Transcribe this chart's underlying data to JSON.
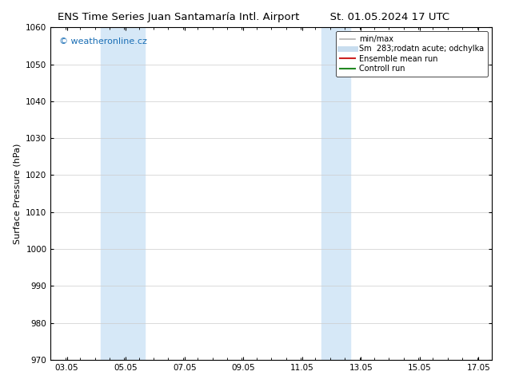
{
  "title_left": "ENS Time Series Juan Santamaría Intl. Airport",
  "title_right": "St. 01.05.2024 17 UTC",
  "ylabel": "Surface Pressure (hPa)",
  "ylim": [
    970,
    1060
  ],
  "yticks": [
    970,
    980,
    990,
    1000,
    1010,
    1020,
    1030,
    1040,
    1050,
    1060
  ],
  "xlim_start": 2.5,
  "xlim_end": 17.5,
  "xtick_positions": [
    3.05,
    5.05,
    7.05,
    9.05,
    11.05,
    13.05,
    15.05,
    17.05
  ],
  "xtick_labels": [
    "03.05",
    "05.05",
    "07.05",
    "09.05",
    "11.05",
    "13.05",
    "15.05",
    "17.05"
  ],
  "shaded_regions": [
    {
      "x_start": 4.2,
      "x_end": 5.7
    },
    {
      "x_start": 11.7,
      "x_end": 12.7
    }
  ],
  "shade_color": "#d6e8f7",
  "watermark_text": "© weatheronline.cz",
  "watermark_color": "#1a6eb5",
  "legend_entries": [
    {
      "label": "min/max",
      "color": "#b0b0b0",
      "linewidth": 1.2,
      "linestyle": "-"
    },
    {
      "label": "Sm  283;rodatn acute; odchylka",
      "color": "#c8ddef",
      "linewidth": 5,
      "linestyle": "-"
    },
    {
      "label": "Ensemble mean run",
      "color": "#cc2222",
      "linewidth": 1.5,
      "linestyle": "-"
    },
    {
      "label": "Controll run",
      "color": "#228822",
      "linewidth": 1.5,
      "linestyle": "-"
    }
  ],
  "background_color": "#ffffff",
  "grid_color": "#cccccc",
  "title_fontsize": 9.5,
  "ylabel_fontsize": 8,
  "tick_fontsize": 7.5,
  "legend_fontsize": 7,
  "watermark_fontsize": 8
}
